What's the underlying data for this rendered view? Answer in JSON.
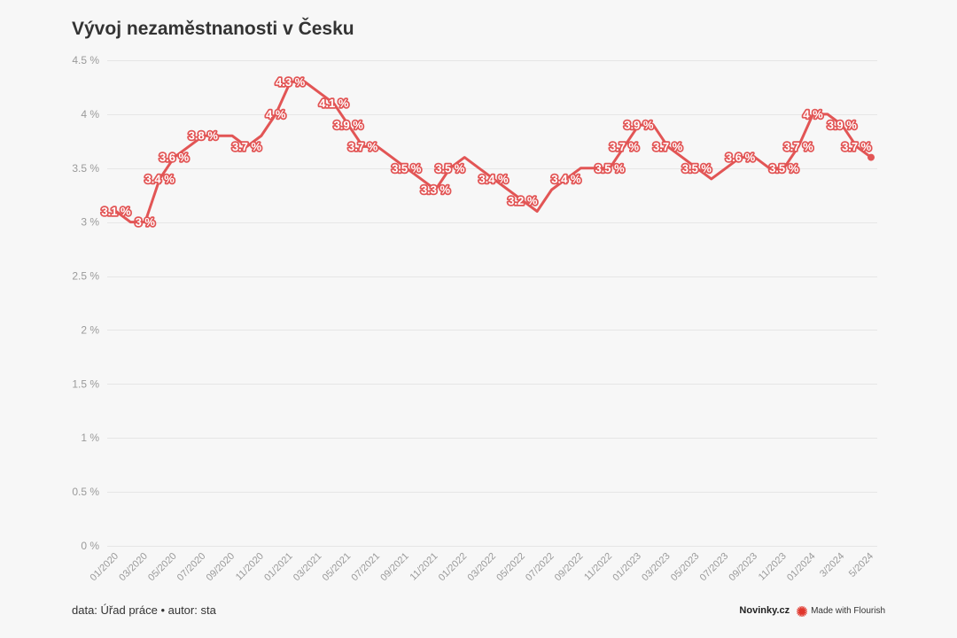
{
  "chart_data": {
    "type": "line",
    "title": "Vývoj nezaměstnanosti v Česku",
    "x": [
      "01/2020",
      "02/2020",
      "03/2020",
      "04/2020",
      "05/2020",
      "06/2020",
      "07/2020",
      "08/2020",
      "09/2020",
      "10/2020",
      "11/2020",
      "12/2020",
      "01/2021",
      "02/2021",
      "03/2021",
      "04/2021",
      "05/2021",
      "06/2021",
      "07/2021",
      "08/2021",
      "09/2021",
      "10/2021",
      "11/2021",
      "12/2021",
      "01/2022",
      "02/2022",
      "03/2022",
      "04/2022",
      "05/2022",
      "06/2022",
      "07/2022",
      "08/2022",
      "09/2022",
      "10/2022",
      "11/2022",
      "12/2022",
      "01/2023",
      "02/2023",
      "03/2023",
      "04/2023",
      "05/2023",
      "06/2023",
      "07/2023",
      "08/2023",
      "09/2023",
      "10/2023",
      "11/2023",
      "12/2023",
      "01/2024",
      "02/2024",
      "03/2024",
      "04/2024",
      "05/2024"
    ],
    "series": [
      {
        "color": "#e25555",
        "values": [
          3.1,
          3.0,
          3.0,
          3.4,
          3.6,
          3.7,
          3.8,
          3.8,
          3.8,
          3.7,
          3.8,
          4.0,
          4.3,
          4.3,
          4.2,
          4.1,
          3.9,
          3.7,
          3.7,
          3.6,
          3.5,
          3.4,
          3.3,
          3.5,
          3.6,
          3.5,
          3.4,
          3.3,
          3.2,
          3.1,
          3.3,
          3.4,
          3.5,
          3.5,
          3.5,
          3.7,
          3.9,
          3.9,
          3.7,
          3.6,
          3.5,
          3.4,
          3.5,
          3.6,
          3.6,
          3.5,
          3.5,
          3.7,
          4.0,
          4.0,
          3.9,
          3.7,
          3.6
        ]
      }
    ],
    "x_tick_labels": [
      "01/2020",
      "03/2020",
      "05/2020",
      "07/2020",
      "09/2020",
      "11/2020",
      "01/2021",
      "03/2021",
      "05/2021",
      "07/2021",
      "09/2021",
      "11/2021",
      "01/2022",
      "03/2022",
      "05/2022",
      "07/2022",
      "09/2022",
      "11/2022",
      "01/2023",
      "03/2023",
      "05/2023",
      "07/2023",
      "09/2023",
      "11/2023",
      "01/2024",
      "3/2024",
      "5/2024"
    ],
    "yticks": [
      0,
      0.5,
      1,
      1.5,
      2,
      2.5,
      3,
      3.5,
      4,
      4.5
    ],
    "y_tick_labels": [
      "0 %",
      "0.5 %",
      "1 %",
      "1.5 %",
      "2 %",
      "2.5 %",
      "3 %",
      "3.5 %",
      "4 %",
      "4.5 %"
    ],
    "ylim": [
      0,
      4.5
    ],
    "grid": true,
    "legend": "none",
    "data_labels": [
      {
        "x": "01/2020",
        "label": "3.1 %"
      },
      {
        "x": "03/2020",
        "label": "3 %"
      },
      {
        "x": "04/2020",
        "label": "3.4 %"
      },
      {
        "x": "05/2020",
        "label": "3.6 %"
      },
      {
        "x": "07/2020",
        "label": "3.8 %"
      },
      {
        "x": "10/2020",
        "label": "3.7 %"
      },
      {
        "x": "12/2020",
        "label": "4 %"
      },
      {
        "x": "01/2021",
        "label": "4.3 %"
      },
      {
        "x": "04/2021",
        "label": "4.1 %"
      },
      {
        "x": "05/2021",
        "label": "3.9 %"
      },
      {
        "x": "06/2021",
        "label": "3.7 %"
      },
      {
        "x": "09/2021",
        "label": "3.5 %"
      },
      {
        "x": "11/2021",
        "label": "3.3 %"
      },
      {
        "x": "12/2021",
        "label": "3.5 %"
      },
      {
        "x": "03/2022",
        "label": "3.4 %"
      },
      {
        "x": "05/2022",
        "label": "3.2 %"
      },
      {
        "x": "08/2022",
        "label": "3.4 %"
      },
      {
        "x": "11/2022",
        "label": "3.5 %"
      },
      {
        "x": "12/2022",
        "label": "3.7 %"
      },
      {
        "x": "01/2023",
        "label": "3.9 %"
      },
      {
        "x": "03/2023",
        "label": "3.7 %"
      },
      {
        "x": "05/2023",
        "label": "3.5 %"
      },
      {
        "x": "08/2023",
        "label": "3.6 %"
      },
      {
        "x": "11/2023",
        "label": "3.5 %"
      },
      {
        "x": "12/2023",
        "label": "3.7 %"
      },
      {
        "x": "01/2024",
        "label": "4 %"
      },
      {
        "x": "03/2024",
        "label": "3.9 %"
      },
      {
        "x": "04/2024",
        "label": "3.7 %"
      }
    ]
  },
  "footer": {
    "source": "data: Úřad práce • autor: sta",
    "publisher": "Novinky.cz",
    "credit": "Made with Flourish",
    "credit_icon": "flourish-logo-icon"
  },
  "colors": {
    "background": "#f7f7f7",
    "line": "#e25555",
    "grid": "#e6e6e6",
    "axis_text": "#9a9a9a",
    "title": "#333333",
    "flourish_logo": "#e0352b"
  }
}
